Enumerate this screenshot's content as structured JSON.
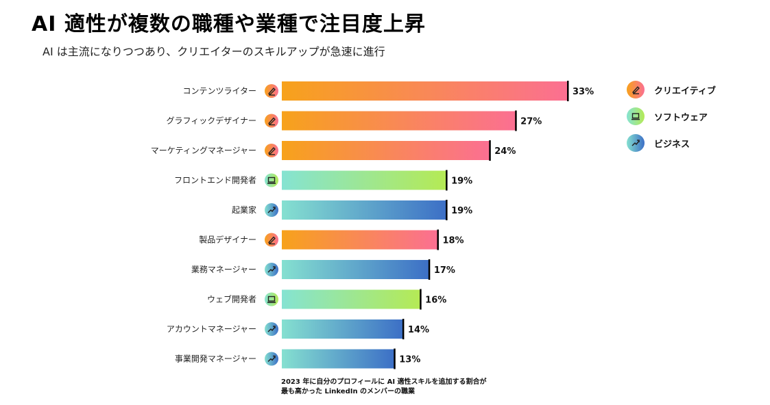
{
  "title": "AI 適性が複数の職種や業種で注目度上昇",
  "subtitle": "AI は主流になりつつあり、クリエイターのスキルアップが急速に進行",
  "colors": {
    "creative": [
      "#f7a21b",
      "#fb6f92"
    ],
    "software": [
      "#85e3d2",
      "#b5ea54"
    ],
    "business": [
      "#85e0d0",
      "#3c6fc6"
    ]
  },
  "legend": [
    {
      "key": "creative",
      "label": "クリエイティブ",
      "icon": "pencil-icon"
    },
    {
      "key": "software",
      "label": "ソフトウェア",
      "icon": "laptop-icon"
    },
    {
      "key": "business",
      "label": "ビジネス",
      "icon": "trend-up-icon"
    }
  ],
  "chart_data": {
    "type": "bar",
    "orientation": "horizontal",
    "xlim": [
      0,
      33
    ],
    "grid": false,
    "legend_position": "right",
    "categories": [
      "コンテンツライター",
      "グラフィックデザイナー",
      "マーケティングマネージャー",
      "フロントエンド開発者",
      "起業家",
      "製品デザイナー",
      "業務マネージャー",
      "ウェブ開発者",
      "アカウントマネージャー",
      "事業開発マネージャー"
    ],
    "values": [
      33,
      27,
      24,
      19,
      19,
      18,
      17,
      16,
      14,
      13
    ],
    "value_labels": [
      "33%",
      "27%",
      "24%",
      "19%",
      "19%",
      "18%",
      "17%",
      "16%",
      "14%",
      "13%"
    ],
    "groups": [
      "creative",
      "creative",
      "creative",
      "software",
      "business",
      "creative",
      "business",
      "software",
      "business",
      "business"
    ]
  },
  "footnote": {
    "line1": "2023 年に自分のプロフィールに AI 適性スキルを追加する割合が",
    "line2": "最も高かった LinkedIn のメンバーの職業"
  }
}
